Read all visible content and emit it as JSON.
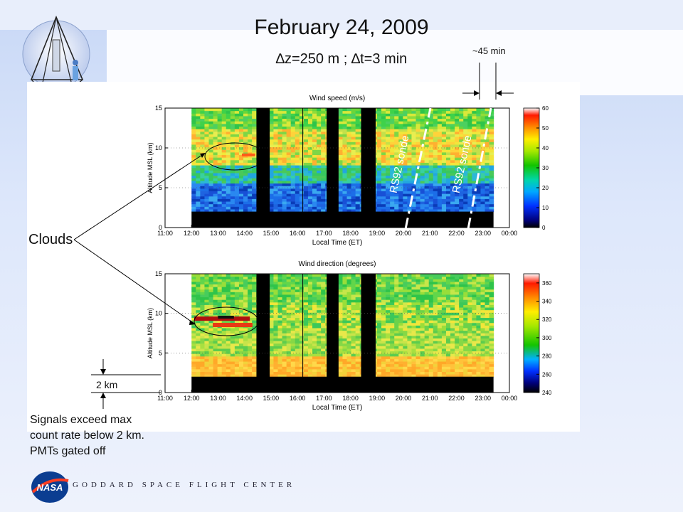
{
  "slide": {
    "title": "February 24, 2009",
    "subtitle": "∆z=250 m ; ∆t=3 min",
    "annotation_45min": "~45 min",
    "clouds_label": "Clouds",
    "two_km_label": "2 km",
    "notes": [
      "Signals exceed max",
      "count rate below 2 km.",
      "PMTs gated off"
    ],
    "footer": "GODDARD SPACE FLIGHT CENTER",
    "nasa_logo_text": "NASA",
    "sonde_labels": [
      "RS92 sonde",
      "RS92 sonde"
    ]
  },
  "chart_data": [
    {
      "type": "heatmap",
      "title": "Wind speed (m/s)",
      "xlabel": "Local Time (ET)",
      "ylabel": "Altitude MSL (km)",
      "x_ticks": [
        "11:00",
        "12:00",
        "13:00",
        "14:00",
        "15:00",
        "16:00",
        "17:00",
        "18:00",
        "19:00",
        "20:00",
        "21:00",
        "22:00",
        "23:00",
        "00:00"
      ],
      "y_ticks": [
        0,
        5,
        10,
        15
      ],
      "ylim": [
        0,
        15
      ],
      "colorbar_ticks": [
        0,
        10,
        20,
        30,
        40,
        50,
        60
      ],
      "colorbar_range": [
        0,
        60
      ],
      "gaps_hours": [
        [
          14.45,
          14.95
        ],
        [
          17.1,
          17.55
        ],
        [
          18.4,
          18.95
        ]
      ],
      "gated_below_km": 2,
      "data_start_hour": 12
    },
    {
      "type": "heatmap",
      "title": "Wind direction (degrees)",
      "xlabel": "Local Time (ET)",
      "ylabel": "Altitude MSL (km)",
      "x_ticks": [
        "11:00",
        "12:00",
        "13:00",
        "14:00",
        "15:00",
        "16:00",
        "17:00",
        "18:00",
        "19:00",
        "20:00",
        "21:00",
        "22:00",
        "23:00",
        "00:00"
      ],
      "y_ticks": [
        0,
        5,
        10,
        15
      ],
      "ylim": [
        0,
        15
      ],
      "colorbar_ticks": [
        240,
        260,
        280,
        300,
        320,
        340,
        360
      ],
      "colorbar_range": [
        240,
        370
      ],
      "gaps_hours": [
        [
          14.45,
          14.95
        ],
        [
          17.1,
          17.55
        ],
        [
          18.4,
          18.95
        ]
      ],
      "gated_below_km": 2,
      "data_start_hour": 12
    }
  ]
}
